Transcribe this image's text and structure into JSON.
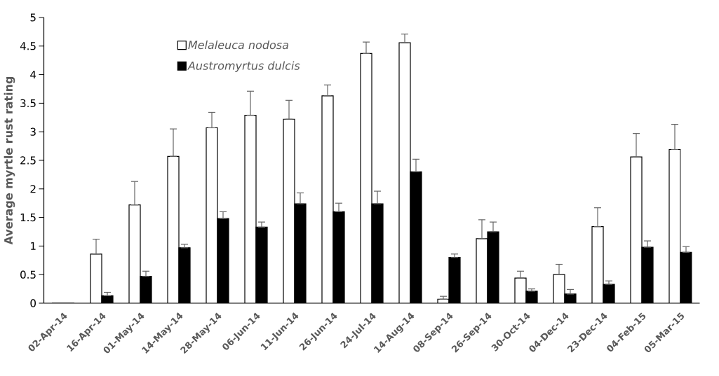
{
  "chart_data": {
    "type": "bar",
    "ylabel": "Average myrtle rust rating",
    "categories": [
      "02-Apr-14",
      "16-Apr-14",
      "01-May-14",
      "14-May-14",
      "28-May-14",
      "06-Jun-14",
      "11-Jun-14",
      "26-Jun-14",
      "24-Jul-14",
      "14-Aug-14",
      "08-Sep-14",
      "26-Sep-14",
      "30-Oct-14",
      "04-Dec-14",
      "23-Dec-14",
      "04-Feb-15",
      "05-Mar-15"
    ],
    "series": [
      {
        "name": "Melaleuca nodosa",
        "color": "#ffffff",
        "values": [
          0,
          0.86,
          1.72,
          2.57,
          3.07,
          3.29,
          3.22,
          3.63,
          4.37,
          4.56,
          0.07,
          1.13,
          0.44,
          0.5,
          1.34,
          2.56,
          2.69
        ],
        "errors": [
          null,
          [
            0.86,
            1.12
          ],
          [
            1.72,
            2.13
          ],
          [
            2.57,
            3.05
          ],
          [
            3.07,
            3.34
          ],
          [
            3.29,
            3.71
          ],
          [
            3.22,
            3.55
          ],
          [
            3.63,
            3.82
          ],
          [
            4.37,
            4.57
          ],
          [
            4.56,
            4.71
          ],
          [
            0.07,
            0.12
          ],
          [
            1.13,
            1.46
          ],
          [
            0.44,
            0.56
          ],
          [
            0.5,
            0.68
          ],
          [
            1.34,
            1.67
          ],
          [
            2.56,
            2.97
          ],
          [
            2.69,
            3.13
          ]
        ]
      },
      {
        "name": "Austromyrtus dulcis",
        "color": "#000000",
        "values": [
          0,
          0.13,
          0.47,
          0.97,
          1.48,
          1.33,
          1.74,
          1.6,
          1.74,
          2.3,
          0.8,
          1.25,
          0.21,
          0.16,
          0.33,
          0.98,
          0.89
        ],
        "errors": [
          null,
          [
            0.13,
            0.19
          ],
          [
            0.47,
            0.56
          ],
          [
            0.97,
            1.03
          ],
          [
            1.48,
            1.6
          ],
          [
            1.33,
            1.42
          ],
          [
            1.74,
            1.93
          ],
          [
            1.6,
            1.75
          ],
          [
            1.74,
            1.96
          ],
          [
            2.3,
            2.52
          ],
          [
            0.8,
            0.86
          ],
          [
            1.25,
            1.42
          ],
          [
            0.21,
            0.25
          ],
          [
            0.16,
            0.24
          ],
          [
            0.33,
            0.39
          ],
          [
            0.98,
            1.09
          ],
          [
            0.89,
            0.99
          ]
        ]
      }
    ],
    "ylim": [
      0,
      5
    ],
    "yticks": [
      0,
      0.5,
      1,
      1.5,
      2,
      2.5,
      3,
      3.5,
      4,
      4.5,
      5
    ],
    "grid": false,
    "legend": "top left"
  }
}
